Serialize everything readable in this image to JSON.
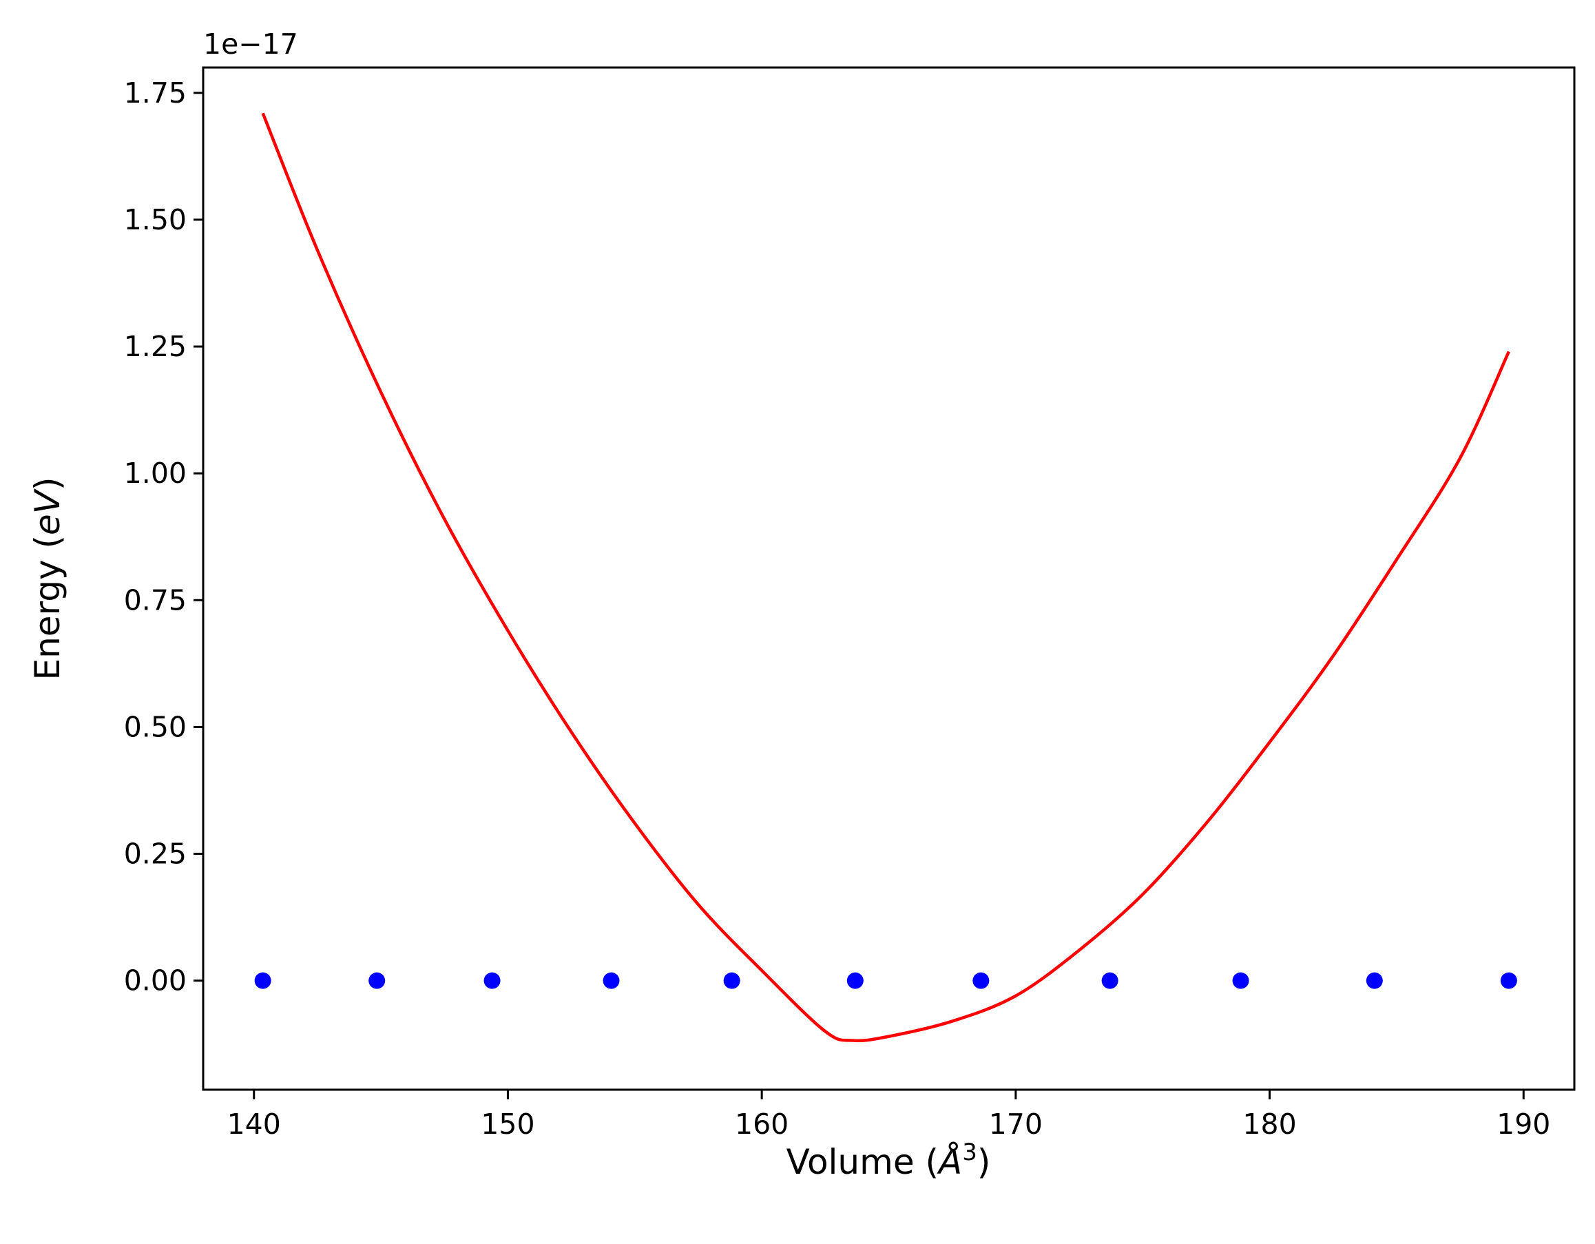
{
  "chart_data": {
    "type": "scatter",
    "title": "",
    "xlabel": "Volume (Å³)",
    "ylabel": "Energy (eV)",
    "xlabel_parts": {
      "prefix": "Volume (",
      "symbol": "Å",
      "superscript": "3",
      "suffix": ")"
    },
    "ylabel_parts": {
      "prefix": "Energy (",
      "unit": "eV",
      "suffix": ")"
    },
    "y_offset_label": "1e−17",
    "y_scale_factor": 1e-17,
    "xlim": [
      138,
      192
    ],
    "ylim": [
      -0.215,
      1.8
    ],
    "x_ticks": [
      140,
      150,
      160,
      170,
      180,
      190
    ],
    "y_ticks": [
      0.0,
      0.25,
      0.5,
      0.75,
      1.0,
      1.25,
      1.5,
      1.75
    ],
    "x_tick_labels": [
      "140",
      "150",
      "160",
      "170",
      "180",
      "190"
    ],
    "y_tick_labels": [
      "0.00",
      "0.25",
      "0.50",
      "0.75",
      "1.00",
      "1.25",
      "1.50",
      "1.75"
    ],
    "grid": false,
    "legend": "none",
    "series": [
      {
        "kind": "points",
        "color": "#0000ff",
        "x": [
          140.35,
          144.84,
          149.38,
          154.07,
          158.82,
          163.68,
          168.63,
          173.71,
          178.86,
          184.13,
          189.42
        ],
        "y": [
          0,
          0,
          0,
          0,
          0,
          0,
          0,
          0,
          0,
          0,
          0
        ]
      },
      {
        "kind": "fit-curve",
        "color": "#ff0000",
        "x": [
          140.35,
          142.5,
          145,
          147.5,
          150,
          152.5,
          155,
          157.5,
          160,
          162.5,
          163.6,
          165,
          167.5,
          170,
          172.5,
          175,
          177.5,
          180,
          182.5,
          185,
          187.5,
          189.42
        ],
        "y": [
          1.71,
          1.44,
          1.16,
          0.91,
          0.69,
          0.49,
          0.31,
          0.15,
          0.02,
          -0.1,
          -0.118,
          -0.11,
          -0.08,
          -0.03,
          0.06,
          0.17,
          0.31,
          0.47,
          0.64,
          0.83,
          1.03,
          1.24
        ]
      }
    ]
  }
}
